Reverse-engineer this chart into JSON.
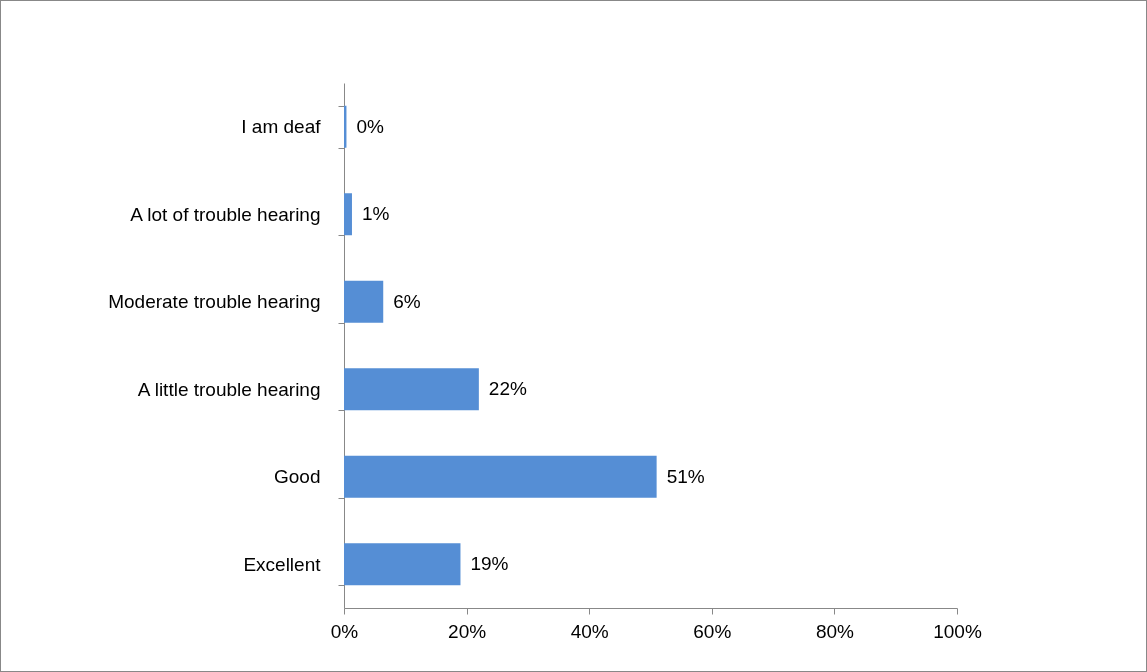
{
  "chart_data": {
    "type": "bar",
    "orientation": "horizontal",
    "categories": [
      "I am deaf",
      "A lot of trouble hearing",
      "Moderate trouble hearing",
      "A little trouble hearing",
      "Good",
      "Excellent"
    ],
    "values": [
      0.4,
      1.3,
      6.4,
      22,
      51,
      19
    ],
    "value_labels": [
      "0%",
      "1%",
      "6%",
      "22%",
      "51%",
      "19%"
    ],
    "color": "#558ed5",
    "xlim": [
      0,
      100
    ],
    "xticks": [
      {
        "value": 0,
        "label": "0%"
      },
      {
        "value": 20,
        "label": "20%"
      },
      {
        "value": 40,
        "label": "40%"
      },
      {
        "value": 60,
        "label": "60%"
      },
      {
        "value": 80,
        "label": "80%"
      },
      {
        "value": 100,
        "label": "100%"
      }
    ],
    "grid": false
  }
}
